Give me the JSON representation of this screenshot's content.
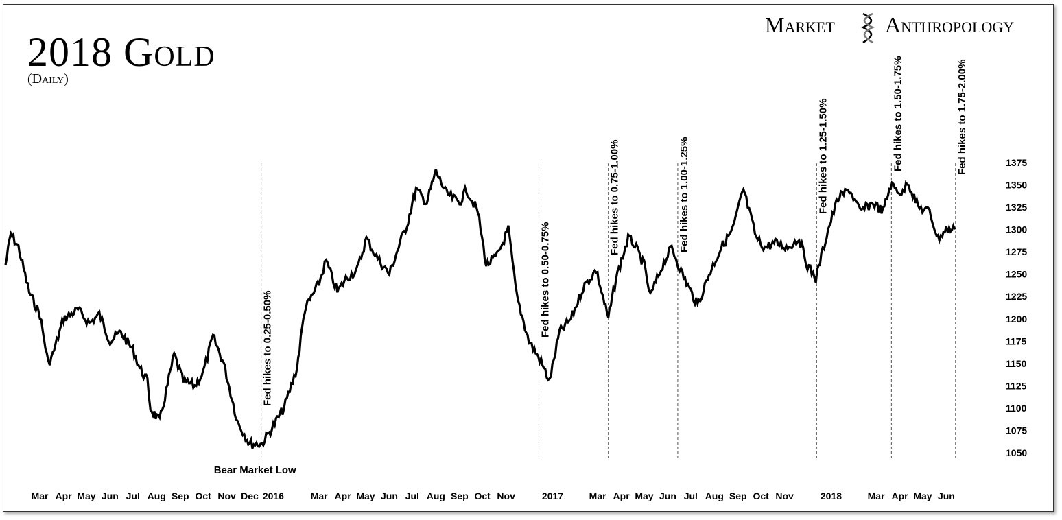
{
  "header": {
    "title": "2018 Gold",
    "subtitle": "(Daily)",
    "brand_left": "Market",
    "brand_right": "Anthropology"
  },
  "icons": {
    "brand_logo": "dna-helix-icon"
  },
  "colors": {
    "line": "#000000",
    "background": "#ffffff",
    "marker_line": "#555555"
  },
  "chart_data": {
    "type": "line",
    "title": "2018 Gold",
    "subtitle": "(Daily)",
    "xlabel": "",
    "ylabel": "",
    "ylim": [
      1040,
      1385
    ],
    "yticks": [
      1050,
      1075,
      1100,
      1125,
      1150,
      1175,
      1200,
      1225,
      1250,
      1275,
      1300,
      1325,
      1350,
      1375
    ],
    "ytick_labels": [
      "1050",
      "1075",
      "1100",
      "1125",
      "1150",
      "1175",
      "1200",
      "1225",
      "1250",
      "1275",
      "1300",
      "1325",
      "1350",
      "1375"
    ],
    "x_tick_labels": [
      "Mar",
      "Apr",
      "May",
      "Jun",
      "Jul",
      "Aug",
      "Sep",
      "Oct",
      "Nov",
      "Dec",
      "2016",
      "Mar",
      "Apr",
      "May",
      "Jun",
      "Jul",
      "Aug",
      "Sep",
      "Oct",
      "Nov",
      "2017",
      "Mar",
      "Apr",
      "May",
      "Jun",
      "Jul",
      "Aug",
      "Sep",
      "Oct",
      "Nov",
      "2018",
      "Mar",
      "Apr",
      "May",
      "Jun"
    ],
    "x_tick_dates": [
      "2015-03",
      "2015-04",
      "2015-05",
      "2015-06",
      "2015-07",
      "2015-08",
      "2015-09",
      "2015-10",
      "2015-11",
      "2015-12",
      "2016-01",
      "2016-03",
      "2016-04",
      "2016-05",
      "2016-06",
      "2016-07",
      "2016-08",
      "2016-09",
      "2016-10",
      "2016-11",
      "2017-01",
      "2017-03",
      "2017-04",
      "2017-05",
      "2017-06",
      "2017-07",
      "2017-08",
      "2017-09",
      "2017-10",
      "2017-11",
      "2018-01",
      "2018-03",
      "2018-04",
      "2018-05",
      "2018-06"
    ],
    "grid": false,
    "legend": "none",
    "series": [
      {
        "x": [
          "2015-01-15",
          "2015-01-22",
          "2015-02-01",
          "2015-02-15",
          "2015-03-01",
          "2015-03-12",
          "2015-03-18",
          "2015-04-01",
          "2015-04-20",
          "2015-05-05",
          "2015-05-18",
          "2015-06-01",
          "2015-06-15",
          "2015-07-01",
          "2015-07-10",
          "2015-07-20",
          "2015-07-24",
          "2015-08-05",
          "2015-08-24",
          "2015-09-05",
          "2015-09-20",
          "2015-10-01",
          "2015-10-14",
          "2015-10-28",
          "2015-11-15",
          "2015-12-01",
          "2015-12-17",
          "2016-01-01",
          "2016-01-15",
          "2016-02-01",
          "2016-02-11",
          "2016-03-01",
          "2016-03-10",
          "2016-03-25",
          "2016-04-05",
          "2016-04-20",
          "2016-05-02",
          "2016-05-15",
          "2016-06-01",
          "2016-06-15",
          "2016-06-24",
          "2016-07-06",
          "2016-07-20",
          "2016-08-01",
          "2016-08-15",
          "2016-09-01",
          "2016-09-10",
          "2016-09-25",
          "2016-10-06",
          "2016-10-20",
          "2016-11-04",
          "2016-11-15",
          "2016-12-01",
          "2016-12-15",
          "2016-12-28",
          "2017-01-10",
          "2017-01-25",
          "2017-02-10",
          "2017-02-27",
          "2017-03-15",
          "2017-03-25",
          "2017-04-10",
          "2017-04-17",
          "2017-05-01",
          "2017-05-09",
          "2017-05-25",
          "2017-06-06",
          "2017-06-20",
          "2017-07-10",
          "2017-07-25",
          "2017-08-10",
          "2017-08-25",
          "2017-09-08",
          "2017-09-25",
          "2017-10-06",
          "2017-10-20",
          "2017-11-05",
          "2017-11-20",
          "2017-12-01",
          "2017-12-12",
          "2017-12-28",
          "2018-01-10",
          "2018-01-25",
          "2018-02-08",
          "2018-02-25",
          "2018-03-10",
          "2018-03-20",
          "2018-04-05",
          "2018-04-11",
          "2018-04-25",
          "2018-05-10",
          "2018-05-21",
          "2018-06-01",
          "2018-06-12"
        ],
        "values": [
          1260,
          1295,
          1280,
          1230,
          1205,
          1150,
          1160,
          1200,
          1210,
          1195,
          1205,
          1175,
          1185,
          1165,
          1145,
          1130,
          1100,
          1085,
          1160,
          1130,
          1125,
          1140,
          1180,
          1150,
          1085,
          1060,
          1060,
          1080,
          1100,
          1145,
          1210,
          1240,
          1265,
          1230,
          1245,
          1255,
          1290,
          1270,
          1250,
          1285,
          1305,
          1345,
          1330,
          1365,
          1340,
          1330,
          1345,
          1320,
          1260,
          1270,
          1300,
          1225,
          1175,
          1155,
          1130,
          1185,
          1200,
          1235,
          1255,
          1200,
          1245,
          1290,
          1285,
          1260,
          1225,
          1260,
          1280,
          1250,
          1215,
          1250,
          1280,
          1300,
          1345,
          1290,
          1280,
          1285,
          1280,
          1290,
          1260,
          1245,
          1300,
          1335,
          1345,
          1320,
          1330,
          1320,
          1350,
          1340,
          1355,
          1325,
          1320,
          1290,
          1300,
          1300
        ]
      }
    ],
    "events": [
      {
        "date": "2015-12-16",
        "label": "Fed hikes to 0.25-0.50%"
      },
      {
        "date": "2016-12-14",
        "label": "Fed hikes to 0.50-0.75%"
      },
      {
        "date": "2017-03-15",
        "label": "Fed hikes to 0.75-1.00%"
      },
      {
        "date": "2017-06-14",
        "label": "Fed hikes to 1.00-1.25%"
      },
      {
        "date": "2017-12-13",
        "label": "Fed hikes to 1.25-1.50%"
      },
      {
        "date": "2018-03-21",
        "label": "Fed hikes to 1.50-1.75%"
      },
      {
        "date": "2018-06-13",
        "label": "Fed hikes to 1.75-2.00%"
      }
    ],
    "annotations": [
      {
        "date": "2015-12-17",
        "value": 1050,
        "text": "Bear Market Low"
      }
    ]
  }
}
